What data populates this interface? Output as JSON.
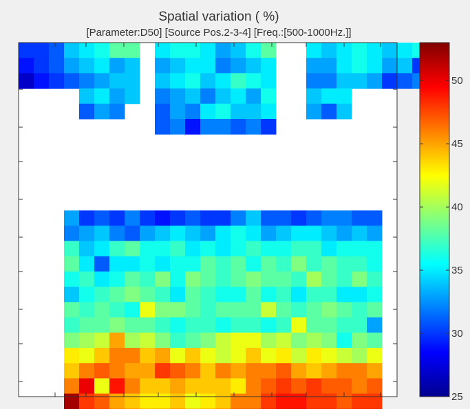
{
  "chart_data": {
    "type": "heatmap",
    "title": "Spatial variation ( %)",
    "subtitle": "[Parameter:D50] [Source Pos.2-3-4] [Freq.:[500-1000Hz.]]",
    "xlabel": "",
    "ylabel": "",
    "colormap": "jet",
    "clim": [
      25,
      53
    ],
    "colorbar_ticks": [
      "25",
      "30",
      "35",
      "40",
      "45",
      "50"
    ],
    "grid": false,
    "colors": {
      "background": "#f0f0f0",
      "axes": "#ffffff",
      "frame": "#333333"
    },
    "blocks": [
      {
        "name": "top-left",
        "col_start": 0,
        "row_start": 0,
        "values": [
          [
            30,
            30,
            31,
            34,
            35,
            36,
            38,
            38
          ],
          [
            29,
            30,
            31,
            33,
            34,
            35,
            33,
            34
          ],
          [
            27,
            29,
            30,
            31,
            32,
            33,
            34,
            34
          ],
          [
            null,
            null,
            null,
            null,
            34,
            35,
            33,
            34
          ],
          [
            null,
            null,
            null,
            null,
            31,
            33,
            32,
            null
          ]
        ]
      },
      {
        "name": "top-middle",
        "col_start": 9,
        "row_start": 0,
        "values": [
          [
            35,
            36,
            36,
            35,
            33,
            34,
            36,
            38
          ],
          [
            33,
            34,
            35,
            35,
            32,
            33,
            34,
            35
          ],
          [
            34,
            35,
            36,
            34,
            35,
            37,
            36,
            35
          ],
          [
            32,
            33,
            34,
            32,
            34,
            35,
            33,
            36
          ],
          [
            31,
            33,
            32,
            35,
            36,
            34,
            34,
            35
          ],
          [
            31,
            32,
            29,
            32,
            32,
            31,
            32,
            30
          ]
        ]
      },
      {
        "name": "top-right",
        "col_start": 19,
        "row_start": 0,
        "values": [
          [
            35,
            34,
            35,
            36,
            35,
            34,
            35,
            36
          ],
          [
            33,
            33,
            35,
            36,
            35,
            33,
            34,
            30
          ],
          [
            32,
            32,
            34,
            34,
            33,
            30,
            31,
            32
          ],
          [
            34,
            35,
            35,
            null,
            null,
            null,
            null,
            null
          ],
          [
            33,
            31,
            34,
            null,
            null,
            null,
            null,
            null
          ]
        ]
      },
      {
        "name": "bottom",
        "col_start": 3,
        "row_start": 11,
        "values": [
          [
            33,
            30,
            31,
            30,
            32,
            30,
            29,
            30,
            31,
            30,
            30,
            32,
            34,
            31,
            31,
            30,
            31,
            32,
            32,
            31,
            31
          ],
          [
            32,
            33,
            34,
            32,
            31,
            33,
            34,
            35,
            34,
            33,
            35,
            36,
            35,
            33,
            34,
            35,
            35,
            34,
            33,
            34,
            33
          ],
          [
            37,
            34,
            35,
            37,
            38,
            36,
            36,
            37,
            35,
            36,
            35,
            36,
            37,
            36,
            36,
            37,
            37,
            35,
            36,
            36,
            36
          ],
          [
            38,
            35,
            31,
            35,
            35,
            36,
            35,
            36,
            36,
            38,
            37,
            38,
            36,
            38,
            37,
            39,
            37,
            38,
            37,
            37,
            36
          ],
          [
            36,
            37,
            35,
            36,
            38,
            37,
            39,
            36,
            39,
            38,
            37,
            38,
            39,
            38,
            38,
            37,
            40,
            38,
            37,
            39,
            37
          ],
          [
            34,
            36,
            37,
            38,
            39,
            38,
            37,
            35,
            38,
            37,
            36,
            36,
            38,
            36,
            37,
            35,
            37,
            37,
            35,
            35,
            36
          ],
          [
            38,
            37,
            38,
            37,
            36,
            42,
            39,
            39,
            38,
            37,
            38,
            38,
            38,
            41,
            38,
            37,
            38,
            39,
            38,
            37,
            38
          ],
          [
            37,
            38,
            38,
            39,
            38,
            38,
            37,
            36,
            37,
            37,
            36,
            37,
            37,
            36,
            37,
            42,
            38,
            38,
            37,
            37,
            33
          ],
          [
            39,
            40,
            41,
            45,
            40,
            41,
            39,
            37,
            38,
            39,
            41,
            42,
            42,
            40,
            41,
            39,
            40,
            39,
            36,
            39,
            38
          ],
          [
            43,
            42,
            44,
            46,
            46,
            44,
            45,
            42,
            44,
            42,
            41,
            42,
            44,
            42,
            43,
            41,
            43,
            42,
            41,
            40,
            42
          ],
          [
            44,
            46,
            47,
            46,
            45,
            45,
            48,
            47,
            46,
            44,
            46,
            45,
            46,
            46,
            47,
            45,
            44,
            45,
            46,
            46,
            45
          ],
          [
            46,
            50,
            42,
            49,
            46,
            44,
            44,
            45,
            44,
            44,
            44,
            43,
            46,
            47,
            48,
            47,
            48,
            47,
            47,
            46,
            47
          ],
          [
            52,
            48,
            47,
            45,
            44,
            43,
            43,
            44,
            42,
            43,
            44,
            46,
            46,
            48,
            49,
            49,
            48,
            48,
            47,
            48,
            48
          ],
          [
            53,
            50,
            49,
            49,
            50,
            50,
            51,
            50,
            50,
            50,
            50,
            50,
            51,
            52,
            52,
            53,
            52,
            52,
            51,
            51,
            52
          ]
        ]
      }
    ]
  }
}
